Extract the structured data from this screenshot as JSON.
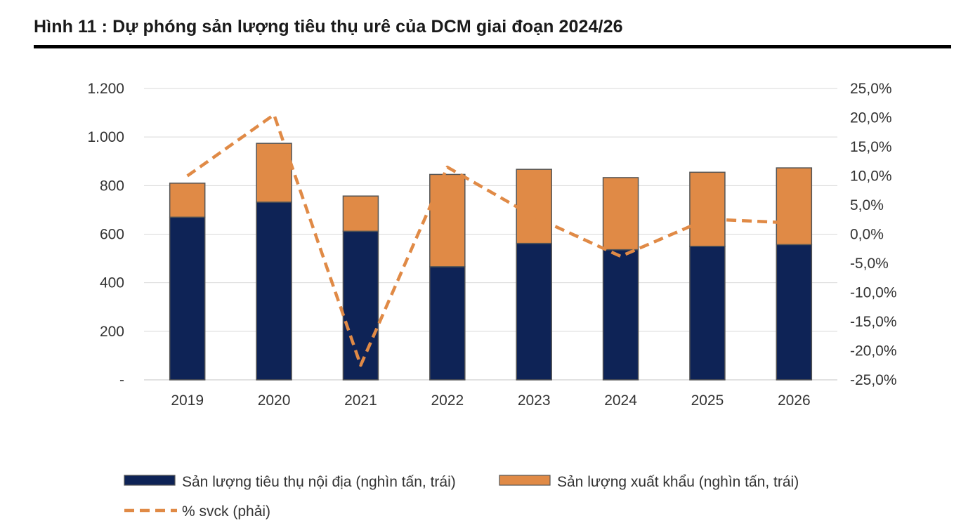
{
  "figure": {
    "title": "Hình 11 : Dự phóng sản lượng tiêu thụ urê của DCM giai đoạn 2024/26"
  },
  "colors": {
    "domestic": "#0e2356",
    "export": "#e08a46",
    "line": "#e08a46",
    "bar_border": "#555555",
    "grid": "#d9d9d9",
    "title_rule": "#000000"
  },
  "chart_data": {
    "type": "bar",
    "stacked": true,
    "title": "Hình 11 : Dự phóng sản lượng tiêu thụ urê của DCM giai đoạn 2024/26",
    "categories": [
      "2019",
      "2020",
      "2021",
      "2022",
      "2023",
      "2024",
      "2025",
      "2026"
    ],
    "series": [
      {
        "name": "Sản lượng tiêu thụ nội địa (nghìn tấn, trái)",
        "kind": "bar",
        "axis": "left",
        "values": [
          670,
          732,
          612,
          466,
          562,
          536,
          550,
          557
        ]
      },
      {
        "name": "Sản lượng xuất khẩu (nghìn tấn, trái)",
        "kind": "bar",
        "axis": "left",
        "values": [
          140,
          242,
          145,
          380,
          305,
          297,
          305,
          316
        ]
      },
      {
        "name": "% svck (phải)",
        "kind": "line",
        "style": "dashed",
        "axis": "right",
        "values": [
          10.0,
          20.5,
          -22.5,
          11.5,
          3.0,
          -3.8,
          2.6,
          1.9
        ]
      }
    ],
    "y_left": {
      "min": 0,
      "max": 1200,
      "ticks": [
        0,
        200,
        400,
        600,
        800,
        1000,
        1200
      ],
      "tick_labels": [
        "-",
        "200",
        "400",
        "600",
        "800",
        "1.000",
        "1.200"
      ]
    },
    "y_right": {
      "min": -25,
      "max": 25,
      "ticks": [
        -25,
        -20,
        -15,
        -10,
        -5,
        0,
        5,
        10,
        15,
        20,
        25
      ],
      "tick_labels": [
        "-25,0%",
        "-20,0%",
        "-15,0%",
        "-10,0%",
        "-5,0%",
        "0,0%",
        "5,0%",
        "10,0%",
        "15,0%",
        "20,0%",
        "25,0%"
      ]
    },
    "grid": true,
    "legend_position": "bottom-left"
  }
}
